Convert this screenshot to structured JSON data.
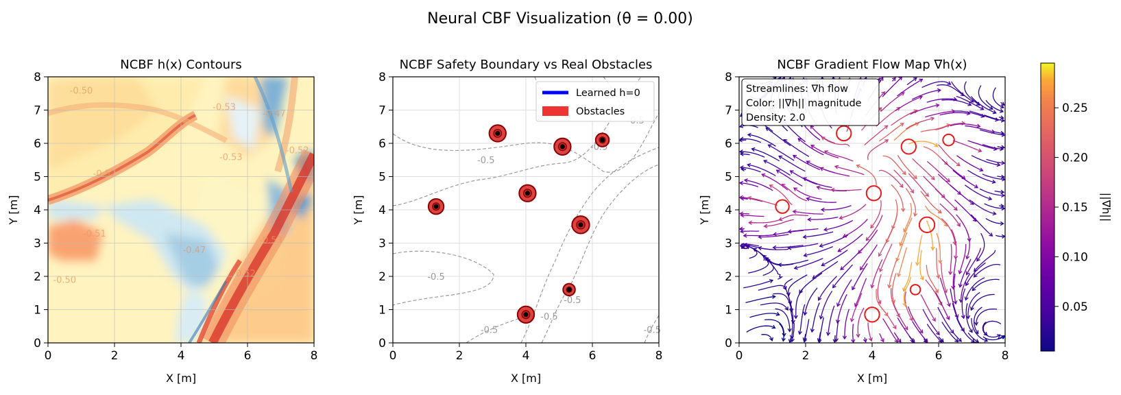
{
  "figure_title": "Neural CBF Visualization (θ = 0.00)",
  "chart_data": [
    {
      "type": "heatmap",
      "title": "NCBF h(x) Contours",
      "xlabel": "X [m]",
      "ylabel": "Y [m]",
      "xlim": [
        0,
        8
      ],
      "ylim": [
        0,
        8
      ],
      "xticks": [
        "0",
        "2",
        "4",
        "6",
        "8"
      ],
      "yticks": [
        "0",
        "1",
        "2",
        "3",
        "4",
        "5",
        "6",
        "7",
        "8"
      ],
      "grid": true,
      "colormap": "RdYlBu_r",
      "contour_labels": [
        {
          "text": "-0.50",
          "x": 1.0,
          "y": 7.5
        },
        {
          "text": "-0.53",
          "x": 5.3,
          "y": 7.0
        },
        {
          "text": "-0.47",
          "x": 6.8,
          "y": 6.8
        },
        {
          "text": "-0.52",
          "x": 7.5,
          "y": 5.7
        },
        {
          "text": "-0.53",
          "x": 5.5,
          "y": 5.5
        },
        {
          "text": "-0.52",
          "x": 1.7,
          "y": 5.0
        },
        {
          "text": "-0.51",
          "x": 1.4,
          "y": 3.2
        },
        {
          "text": "-0.47",
          "x": 4.4,
          "y": 2.7
        },
        {
          "text": "-0.53",
          "x": 6.7,
          "y": 3.0
        },
        {
          "text": "-0.52",
          "x": 5.9,
          "y": 2.0
        },
        {
          "text": "-0.50",
          "x": 0.5,
          "y": 1.8
        }
      ]
    },
    {
      "type": "scatter",
      "title": "NCBF Safety Boundary vs Real Obstacles",
      "xlabel": "X [m]",
      "ylabel": "Y [m]",
      "xlim": [
        0,
        8
      ],
      "ylim": [
        0,
        8
      ],
      "xticks": [
        "0",
        "2",
        "4",
        "6",
        "8"
      ],
      "yticks": [
        "0",
        "1",
        "2",
        "3",
        "4",
        "5",
        "6",
        "7",
        "8"
      ],
      "grid": true,
      "legend_position": "top-right",
      "legend": [
        {
          "label": "Learned h=0",
          "color": "#0000ff",
          "marker": "line"
        },
        {
          "label": "Obstacles",
          "color": "#ee3333",
          "marker": "patch"
        }
      ],
      "obstacles": [
        {
          "x": 3.15,
          "y": 6.3,
          "r": 0.22
        },
        {
          "x": 5.1,
          "y": 5.9,
          "r": 0.22
        },
        {
          "x": 6.3,
          "y": 6.1,
          "r": 0.17
        },
        {
          "x": 4.05,
          "y": 4.5,
          "r": 0.22
        },
        {
          "x": 1.3,
          "y": 4.1,
          "r": 0.2
        },
        {
          "x": 5.65,
          "y": 3.55,
          "r": 0.23
        },
        {
          "x": 5.3,
          "y": 1.6,
          "r": 0.15
        },
        {
          "x": 4.0,
          "y": 0.85,
          "r": 0.22
        }
      ],
      "contour_level_labels": [
        {
          "text": "-0.5",
          "x": 2.8,
          "y": 5.4
        },
        {
          "text": "-0.5",
          "x": 6.2,
          "y": 5.8
        },
        {
          "text": "-0.5",
          "x": 7.3,
          "y": 6.6
        },
        {
          "text": "-0.5",
          "x": 1.3,
          "y": 1.9
        },
        {
          "text": "-0.5",
          "x": 5.4,
          "y": 1.2
        },
        {
          "text": "-0.5",
          "x": 4.7,
          "y": 0.7
        },
        {
          "text": "-0.5",
          "x": 2.9,
          "y": 0.3
        },
        {
          "text": "-0.5",
          "x": 7.8,
          "y": 0.3
        }
      ]
    },
    {
      "type": "streamplot",
      "title": "NCBF Gradient Flow Map ∇h(x)",
      "xlabel": "X [m]",
      "ylabel": "Y [m]",
      "xlim": [
        0,
        8
      ],
      "ylim": [
        0,
        8
      ],
      "xticks": [
        "0",
        "2",
        "4",
        "6",
        "8"
      ],
      "yticks": [
        "0",
        "1",
        "2",
        "3",
        "4",
        "5",
        "6",
        "7",
        "8"
      ],
      "grid": true,
      "annotation_lines": [
        "Streamlines: ∇h flow",
        "Color: ||∇h|| magnitude",
        "Density: 2.0"
      ],
      "obstacle_outlines": [
        {
          "x": 3.15,
          "y": 6.3,
          "r": 0.22
        },
        {
          "x": 5.1,
          "y": 5.9,
          "r": 0.22
        },
        {
          "x": 6.3,
          "y": 6.1,
          "r": 0.17
        },
        {
          "x": 4.05,
          "y": 4.5,
          "r": 0.22
        },
        {
          "x": 1.3,
          "y": 4.1,
          "r": 0.2
        },
        {
          "x": 5.65,
          "y": 3.55,
          "r": 0.23
        },
        {
          "x": 5.3,
          "y": 1.6,
          "r": 0.15
        },
        {
          "x": 4.0,
          "y": 0.85,
          "r": 0.22
        }
      ],
      "colorbar": {
        "label": "||∇h||",
        "colormap": "plasma",
        "range": [
          0.005,
          0.295
        ],
        "ticks": [
          "0.05",
          "0.10",
          "0.15",
          "0.20",
          "0.25"
        ],
        "tick_values": [
          0.05,
          0.1,
          0.15,
          0.2,
          0.25
        ]
      }
    }
  ]
}
